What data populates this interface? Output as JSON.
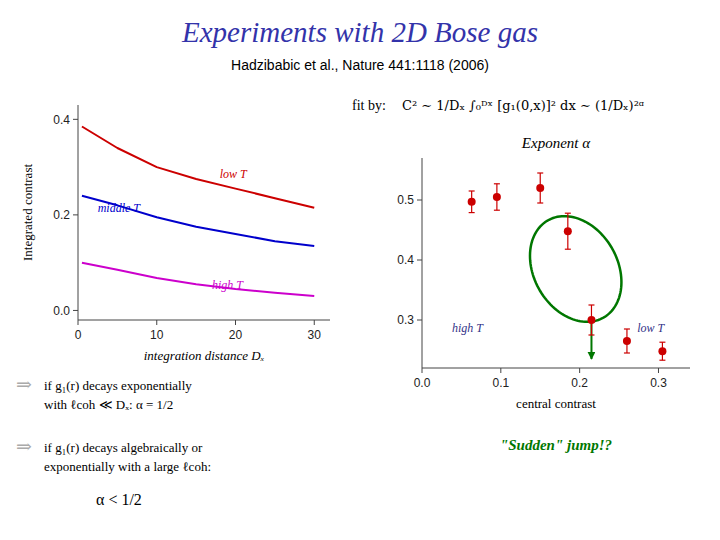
{
  "title": "Experiments with 2D Bose gas",
  "subtitle": "Hadzibabic et al., Nature 441:1118 (2006)",
  "title_color": "#3333aa",
  "subtitle_color": "#000000",
  "chart_data": [
    {
      "type": "line",
      "xlabel": "integration distance Dₓ",
      "ylabel": "Integrated contrast",
      "xlim": [
        0,
        32
      ],
      "ylim": [
        -0.02,
        0.43
      ],
      "xticks": [
        0,
        10,
        20,
        30
      ],
      "yticks": [
        {
          "value": 0,
          "label": "0.0"
        },
        0.2,
        0.4
      ],
      "series": [
        {
          "name": "low T",
          "color": "#cc0000",
          "x": [
            0.5,
            5,
            10,
            15,
            20,
            25,
            30
          ],
          "values": [
            0.385,
            0.34,
            0.3,
            0.275,
            0.255,
            0.235,
            0.215
          ],
          "label_x": 18,
          "label_y": 0.278
        },
        {
          "name": "middle T",
          "color": "#0000cc",
          "x": [
            0.5,
            5,
            10,
            15,
            20,
            25,
            30
          ],
          "values": [
            0.24,
            0.22,
            0.195,
            0.175,
            0.16,
            0.145,
            0.135
          ],
          "label_x": 2.5,
          "label_y": 0.207
        },
        {
          "name": "high T",
          "color": "#cc00cc",
          "x": [
            0.5,
            5,
            10,
            15,
            20,
            25,
            30
          ],
          "values": [
            0.1,
            0.085,
            0.068,
            0.055,
            0.045,
            0.037,
            0.03
          ],
          "label_x": 17,
          "label_y": 0.044
        }
      ],
      "texts": [
        {
          "text": "⇒",
          "color": "#aaaaaa"
        },
        {
          "text": "if g₁(r) decays exponentially",
          "color": "#000000"
        },
        {
          "text": "with ℓcoh ≪ Dₓ:  α = 1/2",
          "color": "#000000"
        },
        {
          "text": "⇒",
          "color": "#aaaaaa"
        },
        {
          "text": "if g₁(r) decays algebraically or",
          "color": "#000000"
        },
        {
          "text": "exponentially with a large ℓcoh:",
          "color": "#000000"
        },
        {
          "text": "α < 1/2",
          "color": "#000000"
        }
      ]
    },
    {
      "type": "scatter",
      "title": "Exponent α",
      "xlabel": "central contrast",
      "xlim": [
        0,
        0.34
      ],
      "ylim": [
        0.22,
        0.57
      ],
      "xticks": [
        {
          "value": 0,
          "label": "0.0"
        },
        0.1,
        0.2,
        0.3
      ],
      "yticks": [
        0.3,
        0.4,
        0.5
      ],
      "x": [
        0.063,
        0.095,
        0.15,
        0.185,
        0.215,
        0.26,
        0.305
      ],
      "values": [
        0.497,
        0.505,
        0.52,
        0.448,
        0.3,
        0.265,
        0.248
      ],
      "errors": [
        0.018,
        0.022,
        0.025,
        0.03,
        0.025,
        0.02,
        0.015
      ],
      "color": "#cc0000",
      "ellipse": {
        "cx": 0.195,
        "cy": 0.385,
        "rx": 0.055,
        "ry": 0.09,
        "angle": 15,
        "color": "#007700"
      },
      "arrow": {
        "x1": 0.215,
        "y1": 0.298,
        "x2": 0.215,
        "y2": 0.235,
        "color": "#007700"
      },
      "annotations": [
        {
          "text": "high T",
          "x": 0.038,
          "y": 0.295,
          "color": "#333388"
        },
        {
          "text": "low T",
          "x": 0.273,
          "y": 0.295,
          "color": "#333388"
        }
      ],
      "texts": [
        {
          "text": "fit by:",
          "color": "#000000"
        },
        {
          "text": "C² ∼ 1/Dₓ ∫₀ᴰˣ [g₁(0,x)]² dx ∼ (1/Dₓ)²ᵅ",
          "color": "#000000"
        },
        {
          "text": "\"Sudden\" jump!?",
          "color": "#007700"
        }
      ]
    }
  ]
}
